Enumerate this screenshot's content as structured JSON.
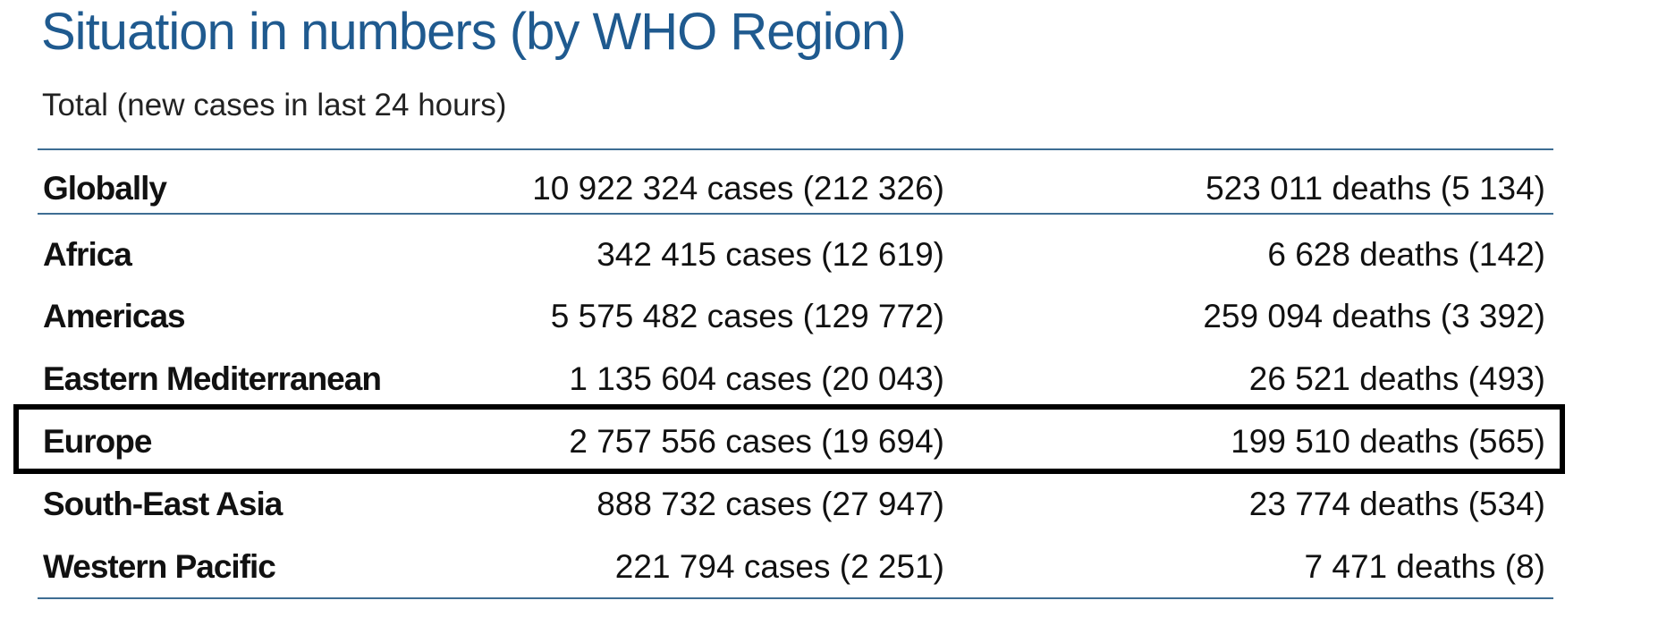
{
  "header": {
    "title": "Situation in numbers (by WHO Region)",
    "subtitle": "Total (new cases in last 24 hours)"
  },
  "table": {
    "global": {
      "region": "Globally",
      "cases": "10 922 324 cases (212 326)",
      "deaths": "523 011 deaths (5 134)"
    },
    "rows": [
      {
        "region": "Africa",
        "cases": "342 415 cases (12 619)",
        "deaths": "6 628 deaths (142)"
      },
      {
        "region": "Americas",
        "cases": "5 575 482 cases (129 772)",
        "deaths": "259 094 deaths (3 392)"
      },
      {
        "region": "Eastern Mediterranean",
        "cases": "1 135 604 cases (20 043)",
        "deaths": "26 521 deaths (493)"
      },
      {
        "region": "Europe",
        "cases": "2 757 556 cases (19 694)",
        "deaths": "199 510 deaths (565)"
      },
      {
        "region": "South-East Asia",
        "cases": "888 732 cases (27 947)",
        "deaths": "23 774 deaths (534)"
      },
      {
        "region": "Western Pacific",
        "cases": "221 794 cases (2 251)",
        "deaths": "7 471 deaths (8)"
      }
    ]
  },
  "highlighted_row": "Europe",
  "colors": {
    "title": "#1f5a8f",
    "rule": "#3e6d93",
    "highlight_border": "#000000"
  }
}
